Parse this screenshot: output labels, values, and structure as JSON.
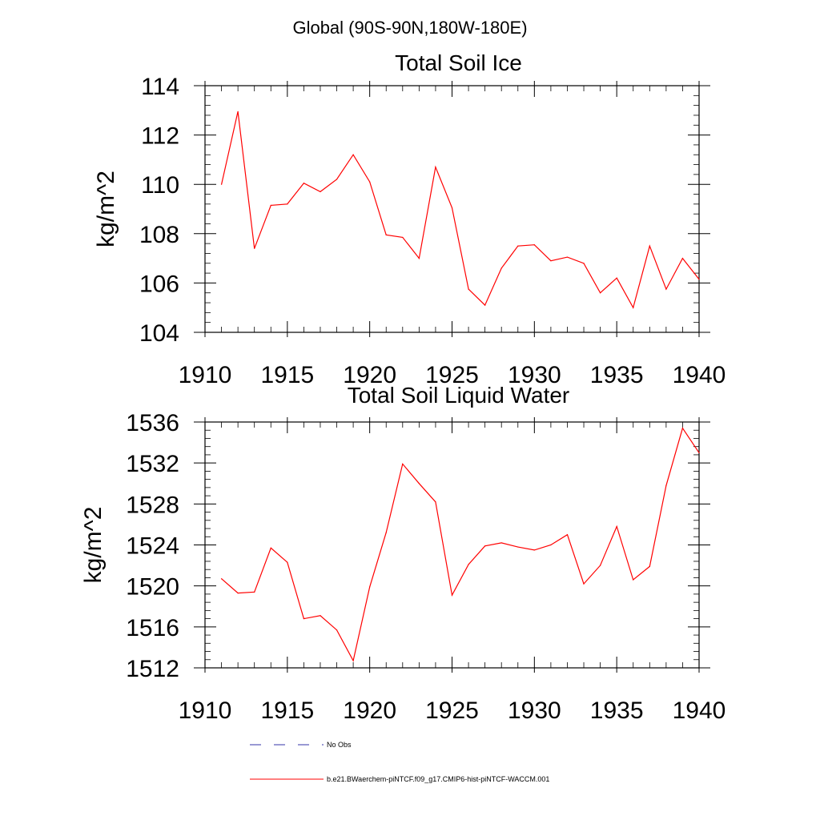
{
  "page_title": "Global (90S-90N,180W-180E)",
  "chart_data": [
    {
      "type": "line",
      "title": "Total Soil Ice",
      "ylabel": "kg/m^2",
      "xlabel": "",
      "xlim": [
        1910,
        1940
      ],
      "ylim": [
        104,
        114
      ],
      "xticks": [
        1910,
        1915,
        1920,
        1925,
        1930,
        1935,
        1940
      ],
      "yticks": [
        104,
        106,
        108,
        110,
        112,
        114
      ],
      "series": [
        {
          "name": "b.e21.BWaerchem-piNTCF.f09_g17.CMIP6-hist-piNTCF-WACCM.001",
          "color": "#ff0000",
          "x": [
            1911,
            1912,
            1913,
            1914,
            1915,
            1916,
            1917,
            1918,
            1919,
            1920,
            1921,
            1922,
            1923,
            1924,
            1925,
            1926,
            1927,
            1928,
            1929,
            1930,
            1931,
            1932,
            1933,
            1934,
            1935,
            1936,
            1937,
            1938,
            1939,
            1940
          ],
          "y": [
            110.0,
            112.95,
            107.4,
            109.15,
            109.2,
            110.05,
            109.7,
            110.2,
            111.2,
            110.1,
            107.95,
            107.85,
            107.0,
            110.7,
            109.05,
            105.75,
            105.1,
            106.6,
            107.5,
            107.55,
            106.9,
            107.05,
            106.8,
            105.6,
            106.2,
            105.0,
            107.5,
            105.75,
            107.0,
            106.15
          ]
        }
      ]
    },
    {
      "type": "line",
      "title": "Total Soil Liquid Water",
      "ylabel": "kg/m^2",
      "xlabel": "",
      "xlim": [
        1910,
        1940
      ],
      "ylim": [
        1512,
        1536
      ],
      "xticks": [
        1910,
        1915,
        1920,
        1925,
        1930,
        1935,
        1940
      ],
      "yticks": [
        1512,
        1516,
        1520,
        1524,
        1528,
        1532,
        1536
      ],
      "series": [
        {
          "name": "b.e21.BWaerchem-piNTCF.f09_g17.CMIP6-hist-piNTCF-WACCM.001",
          "color": "#ff0000",
          "x": [
            1911,
            1912,
            1913,
            1914,
            1915,
            1916,
            1917,
            1918,
            1919,
            1920,
            1921,
            1922,
            1923,
            1924,
            1925,
            1926,
            1927,
            1928,
            1929,
            1930,
            1931,
            1932,
            1933,
            1934,
            1935,
            1936,
            1937,
            1938,
            1939,
            1940
          ],
          "y": [
            1520.7,
            1519.3,
            1519.4,
            1523.7,
            1522.3,
            1516.8,
            1517.1,
            1515.7,
            1512.7,
            1519.9,
            1525.2,
            1531.9,
            1530.0,
            1528.2,
            1519.1,
            1522.1,
            1523.9,
            1524.2,
            1523.8,
            1523.5,
            1524.0,
            1525.0,
            1520.2,
            1522.0,
            1525.8,
            1520.6,
            1521.9,
            1529.8,
            1535.4,
            1533.0
          ]
        }
      ]
    }
  ],
  "legend": [
    {
      "label": "No Obs",
      "style": "dashed",
      "color": "#3333aa"
    },
    {
      "label": "b.e21.BWaerchem-piNTCF.f09_g17.CMIP6-hist-piNTCF-WACCM.001",
      "style": "solid",
      "color": "#ff0000"
    }
  ]
}
